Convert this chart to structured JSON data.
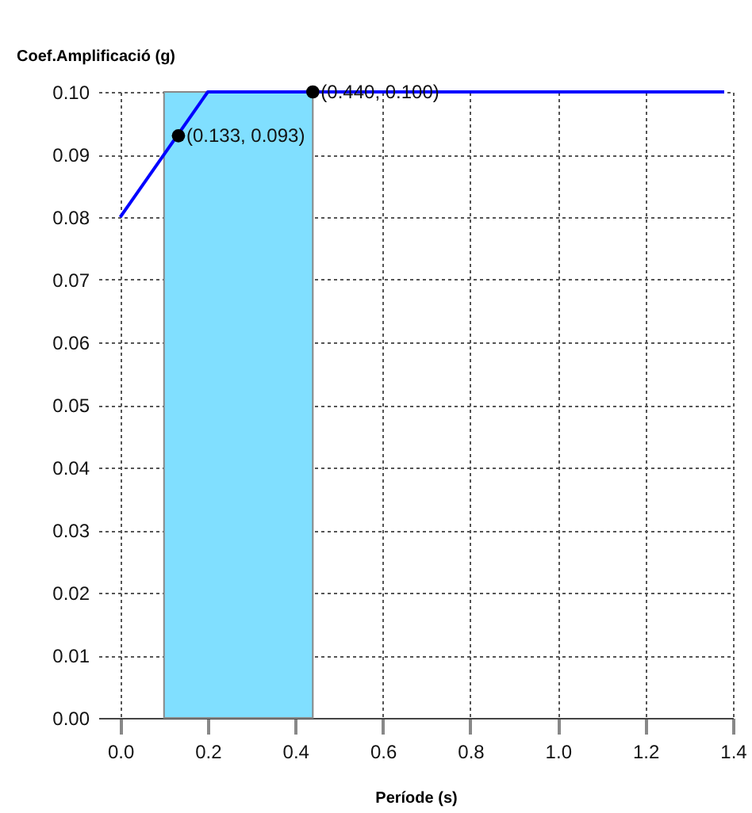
{
  "chart_data": {
    "type": "line",
    "xlabel": "Període (s)",
    "ylabel": "Coef.Amplificació (g)",
    "xlim": [
      -0.05,
      1.4
    ],
    "xticks": [
      {
        "value": 0,
        "label": "0.0"
      },
      0.2,
      0.4,
      0.6,
      0.8,
      {
        "value": 1,
        "label": "1.0"
      },
      1.2,
      1.4
    ],
    "ylim": [
      0,
      0.1
    ],
    "yticks": [
      {
        "value": 0,
        "label": "0.00"
      },
      0.01,
      0.02,
      0.03,
      0.04,
      0.05,
      0.06,
      0.07,
      0.08,
      0.09,
      {
        "value": 0.1,
        "label": "0.10"
      }
    ],
    "grid": true,
    "bands": [
      {
        "axis": "x",
        "from": 0.1,
        "to": 0.44,
        "color": "#80dfff"
      }
    ],
    "series": [
      {
        "color": "#0000ff",
        "x": [
          0,
          0.2,
          1.38
        ],
        "values": [
          0.08,
          0.1,
          0.1
        ]
      },
      {
        "type": "scatter",
        "color": "#000000",
        "marker": "circle",
        "x": [
          0.133,
          0.44
        ],
        "values": [
          0.093,
          0.1
        ],
        "value_labels": [
          "(0.133, 0.093)",
          "(0.440, 0.100)"
        ]
      }
    ]
  }
}
